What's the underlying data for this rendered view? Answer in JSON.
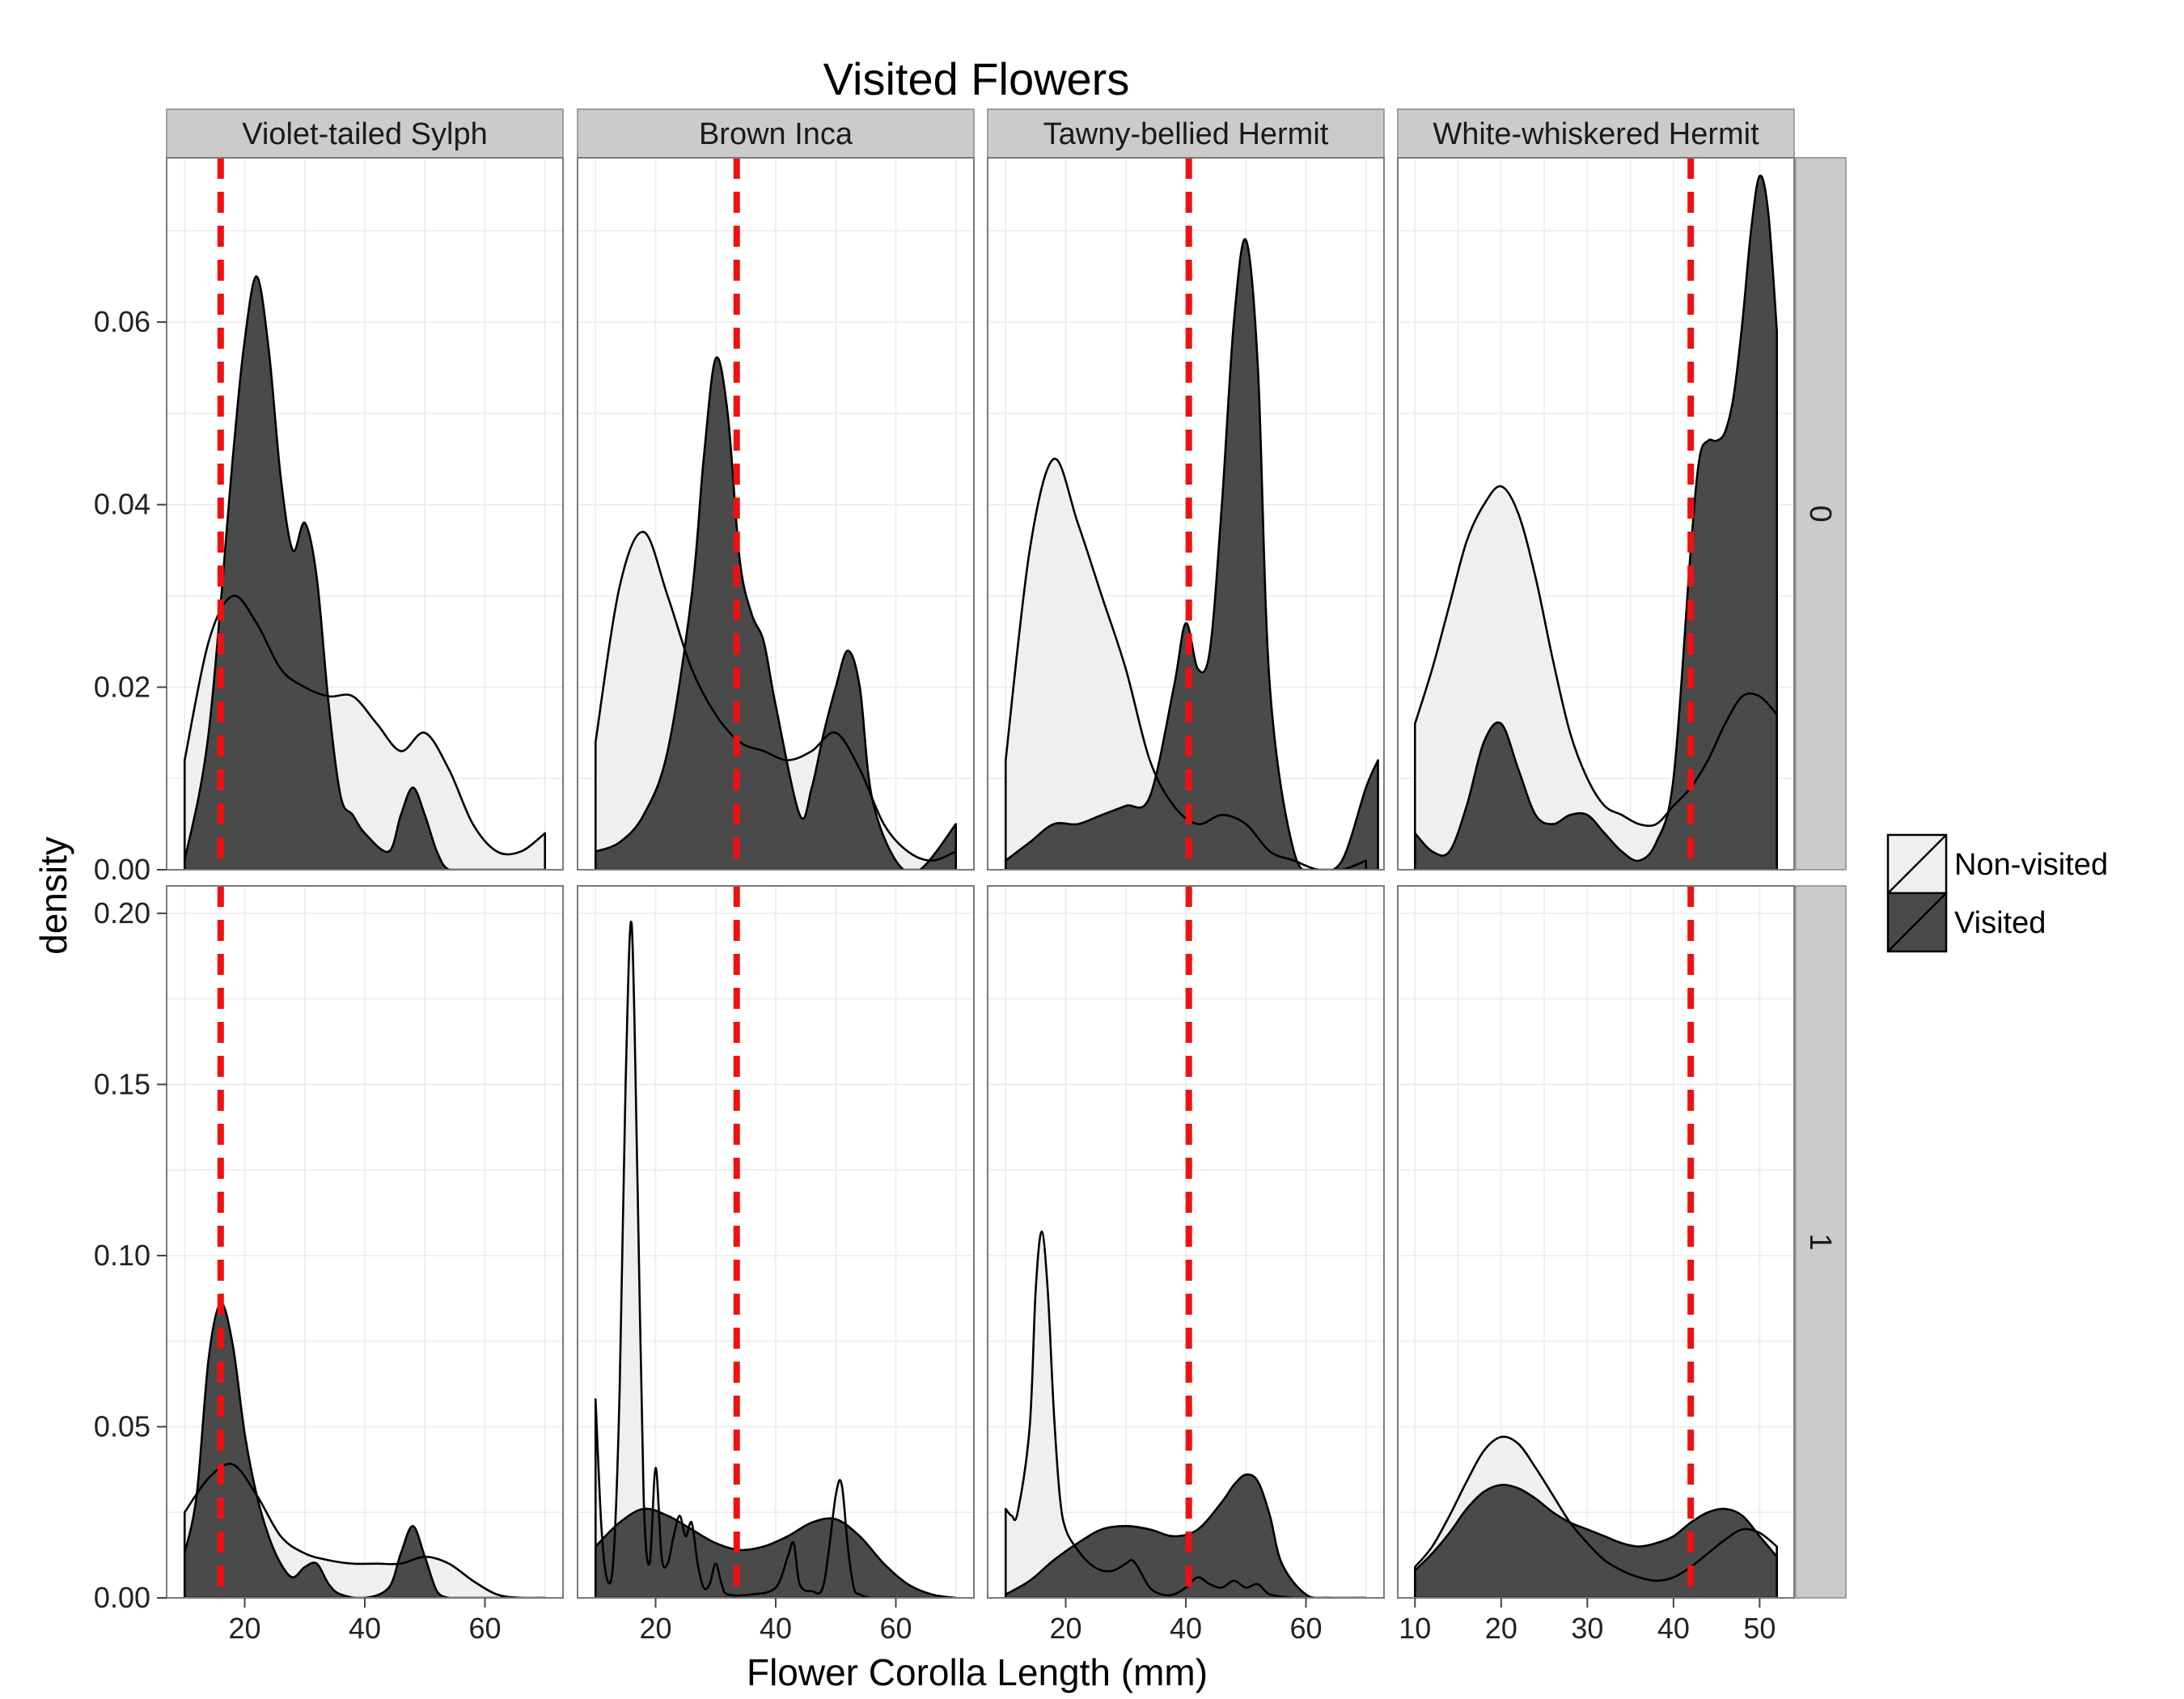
{
  "chart_data": {
    "type": "area",
    "title": "Visited Flowers",
    "xlabel": "Flower Corolla Length (mm)",
    "ylabel": "density",
    "columns": [
      "Violet-tailed Sylph",
      "Brown Inca",
      "Tawny-bellied Hermit",
      "White-whiskered Hermit"
    ],
    "rows": [
      "0",
      "1"
    ],
    "legend": {
      "position": "right",
      "entries": [
        "Non-visited",
        "Visited"
      ]
    },
    "colors": {
      "non_visited": "#efefef",
      "visited": "#4a4a4a",
      "mean_line": "#ee1111",
      "strip": "#cbcbcb",
      "grid": "#ebebeb"
    },
    "row_ylim": [
      [
        0,
        0.078
      ],
      [
        0,
        0.208
      ]
    ],
    "row_yticks": [
      [
        0.0,
        0.02,
        0.04,
        0.06
      ],
      [
        0.0,
        0.05,
        0.1,
        0.15,
        0.2
      ]
    ],
    "row_ytick_labels": [
      [
        "0.00",
        "0.02",
        "0.04",
        "0.06"
      ],
      [
        "0.00",
        "0.05",
        "0.10",
        "0.15",
        "0.20"
      ]
    ],
    "column_xlim": [
      [
        7,
        73
      ],
      [
        7,
        73
      ],
      [
        7,
        73
      ],
      [
        8,
        54
      ]
    ],
    "column_xticks": [
      [
        20,
        40,
        60
      ],
      [
        20,
        40,
        60
      ],
      [
        20,
        40,
        60
      ],
      [
        10,
        20,
        30,
        40,
        50
      ]
    ],
    "column_mean_line": [
      16,
      33.5,
      40.5,
      42
    ],
    "panels": [
      {
        "column": "Violet-tailed Sylph",
        "row": "0",
        "series": [
          {
            "name": "Non-visited",
            "x": [
              10,
              14,
              18,
              22,
              26,
              30,
              34,
              38,
              42,
              46,
              50,
              54,
              58,
              62,
              66,
              70
            ],
            "y": [
              0.012,
              0.025,
              0.03,
              0.027,
              0.022,
              0.02,
              0.019,
              0.019,
              0.016,
              0.013,
              0.015,
              0.011,
              0.005,
              0.002,
              0.002,
              0.004
            ]
          },
          {
            "name": "Visited",
            "x": [
              10,
              14,
              18,
              20,
              22,
              24,
              26,
              28,
              30,
              32,
              34,
              36,
              38,
              40,
              44,
              46,
              48,
              50,
              52,
              54,
              58
            ],
            "y": [
              0.001,
              0.015,
              0.045,
              0.058,
              0.065,
              0.057,
              0.043,
              0.035,
              0.038,
              0.032,
              0.018,
              0.008,
              0.006,
              0.004,
              0.002,
              0.006,
              0.009,
              0.006,
              0.002,
              0.0,
              0.0
            ]
          }
        ]
      },
      {
        "column": "Brown Inca",
        "row": "0",
        "series": [
          {
            "name": "Non-visited",
            "x": [
              10,
              14,
              18,
              22,
              26,
              30,
              34,
              38,
              42,
              46,
              50,
              54,
              58,
              62,
              66,
              70
            ],
            "y": [
              0.014,
              0.031,
              0.037,
              0.03,
              0.022,
              0.017,
              0.014,
              0.013,
              0.012,
              0.013,
              0.015,
              0.011,
              0.005,
              0.002,
              0.001,
              0.002
            ]
          },
          {
            "name": "Visited",
            "x": [
              10,
              14,
              18,
              22,
              26,
              28,
              30,
              32,
              34,
              36,
              38,
              40,
              44,
              46,
              48,
              50,
              52,
              54,
              56,
              60,
              64,
              70
            ],
            "y": [
              0.002,
              0.003,
              0.006,
              0.013,
              0.03,
              0.045,
              0.056,
              0.05,
              0.034,
              0.028,
              0.025,
              0.018,
              0.006,
              0.009,
              0.015,
              0.02,
              0.024,
              0.02,
              0.008,
              0.001,
              0.0,
              0.005
            ]
          }
        ]
      },
      {
        "column": "Tawny-bellied Hermit",
        "row": "0",
        "series": [
          {
            "name": "Non-visited",
            "x": [
              10,
              14,
              18,
              22,
              26,
              30,
              34,
              38,
              42,
              46,
              50,
              54,
              58,
              62,
              66,
              70
            ],
            "y": [
              0.012,
              0.035,
              0.045,
              0.038,
              0.03,
              0.022,
              0.012,
              0.007,
              0.005,
              0.006,
              0.005,
              0.002,
              0.001,
              0.0,
              0.0,
              0.001
            ]
          },
          {
            "name": "Visited",
            "x": [
              10,
              14,
              18,
              22,
              26,
              30,
              34,
              38,
              40,
              42,
              44,
              46,
              48,
              50,
              52,
              54,
              58,
              62,
              66,
              70,
              72
            ],
            "y": [
              0.001,
              0.003,
              0.005,
              0.005,
              0.006,
              0.007,
              0.008,
              0.02,
              0.027,
              0.022,
              0.024,
              0.04,
              0.06,
              0.069,
              0.055,
              0.02,
              0.002,
              0.0,
              0.001,
              0.009,
              0.012
            ]
          }
        ]
      },
      {
        "column": "White-whiskered Hermit",
        "row": "0",
        "series": [
          {
            "name": "Non-visited",
            "x": [
              10,
              12,
              14,
              16,
              18,
              20,
              22,
              24,
              26,
              28,
              30,
              32,
              34,
              36,
              38,
              40,
              42,
              44,
              46,
              48,
              50,
              52
            ],
            "y": [
              0.016,
              0.022,
              0.029,
              0.036,
              0.04,
              0.042,
              0.039,
              0.032,
              0.023,
              0.015,
              0.01,
              0.007,
              0.006,
              0.005,
              0.005,
              0.007,
              0.009,
              0.012,
              0.016,
              0.019,
              0.019,
              0.017
            ]
          },
          {
            "name": "Visited",
            "x": [
              10,
              12,
              14,
              16,
              18,
              20,
              22,
              24,
              26,
              28,
              30,
              32,
              34,
              36,
              38,
              40,
              42,
              43,
              44,
              45,
              46,
              47,
              48,
              49,
              50,
              51,
              52
            ],
            "y": [
              0.004,
              0.002,
              0.002,
              0.007,
              0.014,
              0.016,
              0.011,
              0.006,
              0.005,
              0.006,
              0.006,
              0.004,
              0.002,
              0.001,
              0.003,
              0.01,
              0.035,
              0.045,
              0.047,
              0.047,
              0.048,
              0.052,
              0.06,
              0.07,
              0.076,
              0.072,
              0.059
            ]
          }
        ]
      },
      {
        "column": "Violet-tailed Sylph",
        "row": "1",
        "series": [
          {
            "name": "Non-visited",
            "x": [
              10,
              14,
              18,
              22,
              26,
              30,
              34,
              38,
              42,
              46,
              50,
              54,
              58,
              62,
              66,
              70
            ],
            "y": [
              0.025,
              0.035,
              0.039,
              0.03,
              0.018,
              0.013,
              0.011,
              0.01,
              0.01,
              0.01,
              0.012,
              0.01,
              0.005,
              0.001,
              0.0,
              0.0
            ]
          },
          {
            "name": "Visited",
            "x": [
              10,
              12,
              14,
              16,
              18,
              20,
              22,
              24,
              26,
              28,
              30,
              32,
              34,
              36,
              40,
              44,
              46,
              48,
              50,
              52,
              54
            ],
            "y": [
              0.013,
              0.03,
              0.07,
              0.086,
              0.074,
              0.048,
              0.03,
              0.018,
              0.01,
              0.006,
              0.009,
              0.01,
              0.004,
              0.001,
              0.0,
              0.003,
              0.013,
              0.021,
              0.012,
              0.002,
              0.0
            ]
          }
        ]
      },
      {
        "column": "Brown Inca",
        "row": "1",
        "series": [
          {
            "name": "Non-visited",
            "x": [
              10,
              11,
              12,
              13,
              14,
              15,
              16,
              17,
              18,
              19,
              20,
              21,
              22,
              23,
              24,
              25,
              26,
              27,
              28,
              29,
              30,
              31,
              32,
              36,
              40,
              42,
              43,
              44,
              46,
              48,
              50,
              51,
              52,
              53,
              54,
              56,
              60
            ],
            "y": [
              0.058,
              0.02,
              0.005,
              0.012,
              0.06,
              0.15,
              0.197,
              0.12,
              0.03,
              0.01,
              0.038,
              0.012,
              0.01,
              0.018,
              0.024,
              0.018,
              0.022,
              0.01,
              0.003,
              0.004,
              0.01,
              0.004,
              0.001,
              0.001,
              0.003,
              0.012,
              0.016,
              0.004,
              0.002,
              0.004,
              0.03,
              0.033,
              0.015,
              0.003,
              0.001,
              0.0,
              0.0
            ]
          },
          {
            "name": "Visited",
            "x": [
              10,
              14,
              18,
              22,
              26,
              30,
              34,
              38,
              42,
              46,
              50,
              54,
              58,
              62,
              66,
              70
            ],
            "y": [
              0.015,
              0.022,
              0.026,
              0.024,
              0.02,
              0.016,
              0.014,
              0.015,
              0.018,
              0.022,
              0.023,
              0.018,
              0.01,
              0.004,
              0.001,
              0.0
            ]
          }
        ]
      },
      {
        "column": "Tawny-bellied Hermit",
        "row": "1",
        "series": [
          {
            "name": "Non-visited",
            "x": [
              10,
              11,
              12,
              14,
              15,
              16,
              17,
              18,
              19,
              20,
              22,
              24,
              26,
              28,
              30,
              31,
              32,
              34,
              36,
              38,
              40,
              42,
              44,
              46,
              48,
              50,
              52,
              54,
              58
            ],
            "y": [
              0.026,
              0.024,
              0.025,
              0.05,
              0.09,
              0.107,
              0.09,
              0.055,
              0.03,
              0.02,
              0.014,
              0.01,
              0.008,
              0.008,
              0.01,
              0.011,
              0.009,
              0.003,
              0.001,
              0.001,
              0.003,
              0.006,
              0.004,
              0.003,
              0.005,
              0.003,
              0.004,
              0.001,
              0.0
            ]
          },
          {
            "name": "Visited",
            "x": [
              10,
              14,
              18,
              22,
              26,
              30,
              34,
              38,
              42,
              46,
              48,
              50,
              52,
              54,
              56,
              60,
              64,
              70
            ],
            "y": [
              0.001,
              0.005,
              0.011,
              0.016,
              0.02,
              0.021,
              0.02,
              0.018,
              0.02,
              0.028,
              0.033,
              0.036,
              0.034,
              0.024,
              0.01,
              0.001,
              0.0,
              0.0
            ]
          }
        ]
      },
      {
        "column": "White-whiskered Hermit",
        "row": "1",
        "series": [
          {
            "name": "Non-visited",
            "x": [
              10,
              12,
              14,
              16,
              18,
              20,
              22,
              24,
              26,
              28,
              30,
              32,
              34,
              36,
              38,
              40,
              42,
              44,
              46,
              48,
              50,
              52
            ],
            "y": [
              0.009,
              0.015,
              0.024,
              0.034,
              0.043,
              0.047,
              0.045,
              0.038,
              0.03,
              0.022,
              0.016,
              0.011,
              0.008,
              0.006,
              0.005,
              0.006,
              0.009,
              0.013,
              0.017,
              0.02,
              0.019,
              0.015
            ]
          },
          {
            "name": "Visited",
            "x": [
              10,
              12,
              14,
              16,
              18,
              20,
              22,
              24,
              26,
              28,
              30,
              32,
              34,
              36,
              38,
              40,
              42,
              44,
              46,
              48,
              50,
              52
            ],
            "y": [
              0.008,
              0.013,
              0.019,
              0.026,
              0.031,
              0.033,
              0.032,
              0.029,
              0.025,
              0.022,
              0.02,
              0.018,
              0.016,
              0.015,
              0.016,
              0.018,
              0.022,
              0.025,
              0.026,
              0.024,
              0.018,
              0.012
            ]
          }
        ]
      }
    ]
  }
}
